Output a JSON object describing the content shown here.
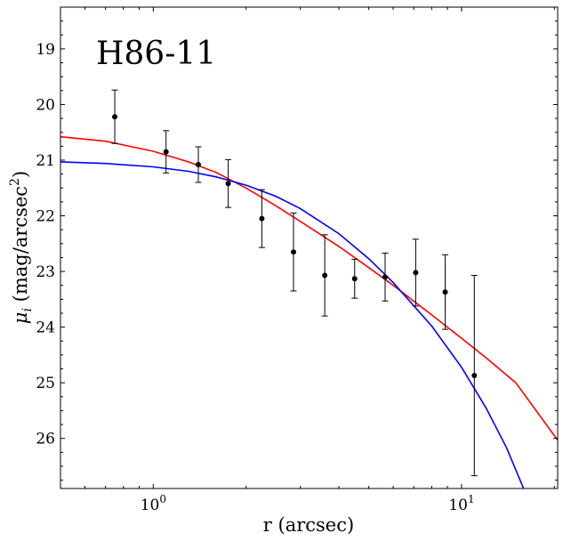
{
  "chart_data": {
    "type": "scatter",
    "title": "",
    "annotation": "H86-11",
    "xlabel": "r (arcsec)",
    "ylabel_main": "μ",
    "ylabel_sub": "i",
    "ylabel_rest_a": " (mag/arcsec",
    "ylabel_sup": "2",
    "ylabel_rest_b": ")",
    "xscale": "log",
    "xlim": [
      0.5,
      20.5
    ],
    "ylim": [
      26.9,
      18.25
    ],
    "y_inverted": true,
    "grid": false,
    "x_major_ticks": [
      1,
      10
    ],
    "x_major_labels": [
      {
        "base": "10",
        "exp": "0"
      },
      {
        "base": "10",
        "exp": "1"
      }
    ],
    "y_major_ticks": [
      19,
      20,
      21,
      22,
      23,
      24,
      25,
      26
    ],
    "y_tick_labels": [
      "19",
      "20",
      "21",
      "22",
      "23",
      "24",
      "25",
      "26"
    ],
    "points": {
      "color": "#000000",
      "x": [
        0.75,
        1.1,
        1.4,
        1.75,
        2.25,
        2.85,
        3.6,
        4.5,
        5.65,
        7.1,
        8.85,
        11.0
      ],
      "y": [
        20.22,
        20.85,
        21.08,
        21.42,
        22.05,
        22.65,
        23.07,
        23.13,
        23.1,
        23.02,
        23.37,
        24.87
      ],
      "yerr_low": [
        0.48,
        0.38,
        0.32,
        0.43,
        0.52,
        0.7,
        0.73,
        0.35,
        0.43,
        0.6,
        0.67,
        1.8
      ],
      "yerr_high": [
        0.48,
        0.38,
        0.32,
        0.43,
        0.52,
        0.7,
        0.73,
        0.35,
        0.43,
        0.6,
        0.67,
        1.8
      ]
    },
    "series": [
      {
        "color": "#ff0000",
        "x": [
          0.5,
          0.7,
          1.0,
          1.3,
          1.6,
          2.0,
          2.5,
          3.0,
          4.0,
          5.0,
          6.0,
          8.0,
          10.0,
          12.0,
          15.0,
          20.5
        ],
        "y": [
          20.58,
          20.66,
          20.84,
          21.03,
          21.22,
          21.5,
          21.82,
          22.1,
          22.55,
          22.93,
          23.25,
          23.78,
          24.2,
          24.55,
          25.0,
          26.03
        ]
      },
      {
        "color": "#0000ff",
        "x": [
          0.5,
          0.7,
          1.0,
          1.3,
          1.6,
          2.0,
          2.5,
          3.0,
          4.0,
          5.0,
          6.0,
          8.0,
          10.0,
          12.0,
          14.0,
          15.9
        ],
        "y": [
          21.03,
          21.06,
          21.12,
          21.2,
          21.3,
          21.45,
          21.65,
          21.87,
          22.32,
          22.77,
          23.2,
          23.98,
          24.72,
          25.45,
          26.17,
          26.9
        ]
      }
    ]
  }
}
